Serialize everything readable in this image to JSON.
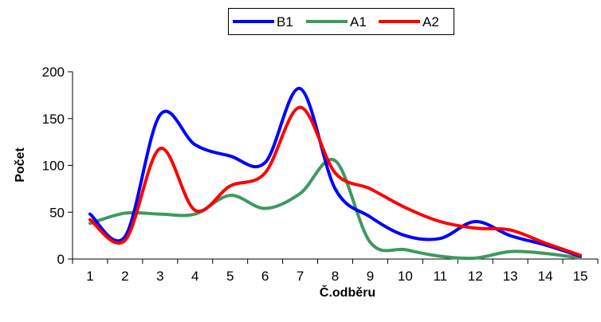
{
  "chart_data": {
    "type": "line",
    "title": "",
    "xlabel": "Č.odběru",
    "ylabel": "Počet",
    "x": [
      1,
      2,
      3,
      4,
      5,
      6,
      7,
      8,
      9,
      10,
      11,
      12,
      13,
      14,
      15
    ],
    "ylim": [
      0,
      200
    ],
    "yticks": [
      0,
      50,
      100,
      150,
      200
    ],
    "grid": false,
    "legend_position": "top-right",
    "series": [
      {
        "name": "B1",
        "color": "#0000ff",
        "values": [
          48,
          24,
          154,
          122,
          110,
          103,
          182,
          75,
          45,
          25,
          22,
          40,
          25,
          15,
          3
        ]
      },
      {
        "name": "A1",
        "color": "#3c9a5f",
        "values": [
          38,
          49,
          48,
          48,
          68,
          54,
          70,
          105,
          18,
          10,
          3,
          1,
          8,
          6,
          1
        ]
      },
      {
        "name": "A2",
        "color": "#ff0000",
        "values": [
          42,
          20,
          118,
          52,
          78,
          92,
          162,
          92,
          75,
          55,
          40,
          33,
          31,
          17,
          4
        ]
      }
    ]
  }
}
